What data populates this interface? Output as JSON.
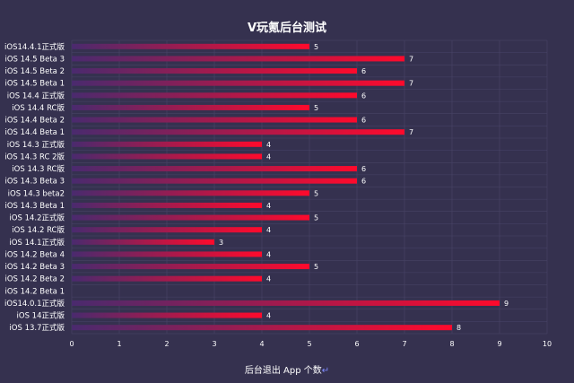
{
  "chart_data": {
    "type": "bar",
    "orientation": "horizontal",
    "title": "V玩氪后台测试",
    "xlabel": "后台退出 App 个数",
    "xlabel_suffix": "↵",
    "xlim": [
      0,
      10
    ],
    "xticks": [
      0,
      1,
      2,
      3,
      4,
      5,
      6,
      7,
      8,
      9,
      10
    ],
    "grid": true,
    "categories": [
      "iOS14.4.1正式版",
      "iOS 14.5 Beta 3",
      "iOS 14.5 Beta 2",
      "iOS 14.5 Beta 1",
      "iOS 14.4 正式版",
      "iOS 14.4 RC版",
      "iOS 14.4 Beta 2",
      "iOS 14.4 Beta 1",
      "iOS 14.3 正式版",
      "iOS 14.3 RC 2版",
      "iOS 14.3 RC版",
      "iOS 14.3 Beta 3",
      "iOS 14.3 beta2",
      "iOS 14.3 Beta 1",
      "iOS 14.2正式版",
      "iOS 14.2 RC版",
      "iOS 14.1正式版",
      "iOS 14.2 Beta 4",
      "iOS 14.2 Beta 3",
      "iOS 14.2 Beta 2",
      "iOS 14.2 Beta 1",
      "iOS14.0.1正式版",
      "iOS 14正式版",
      "iOS 13.7正式版"
    ],
    "values": [
      5,
      7,
      6,
      7,
      6,
      5,
      6,
      7,
      4,
      4,
      6,
      6,
      5,
      4,
      5,
      4,
      3,
      4,
      5,
      4,
      null,
      9,
      4,
      8
    ],
    "colors": {
      "background": "#35314f",
      "bar_start": "#4a2a6e",
      "bar_end": "#ff0a2c",
      "grid": "#4a4668",
      "text": "#ffffff"
    }
  }
}
